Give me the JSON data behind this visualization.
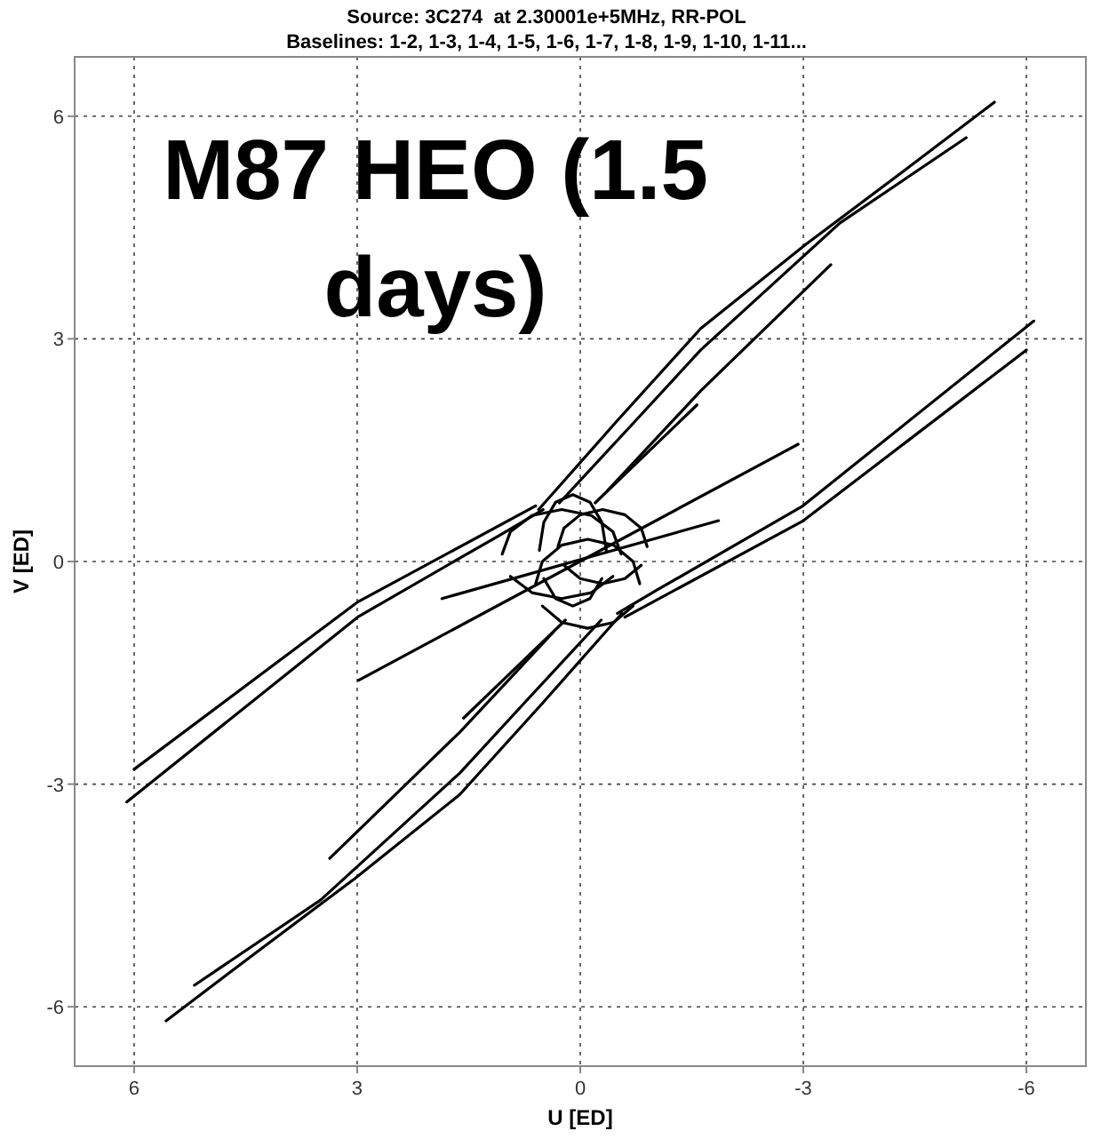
{
  "chart_data": {
    "type": "line",
    "title": "Source: 3C274  at 2.30001e+5MHz, RR-POL",
    "subtitle": "Baselines: 1-2, 1-3, 1-4, 1-5, 1-6, 1-7, 1-8, 1-9, 1-10, 1-11...",
    "xlabel": "U [ED]",
    "ylabel": "V [ED]",
    "annotations": [
      "M87 HEO (1.5 days)"
    ],
    "xlim": [
      6.8,
      -6.8
    ],
    "ylim": [
      -6.8,
      6.8
    ],
    "xticks": [
      6,
      3,
      0,
      -3,
      -6
    ],
    "yticks": [
      -6,
      -3,
      0,
      3,
      6
    ],
    "grid": true,
    "series": [
      {
        "color": "#000000",
        "x": [
          0.56,
          -0.5,
          -1.62,
          -3.03,
          -4.4,
          -5.57
        ],
        "values": [
          0.7,
          1.9,
          3.14,
          4.27,
          5.3,
          6.19
        ]
      },
      {
        "color": "#000000",
        "x": [
          -0.56,
          0.5,
          1.62,
          3.03,
          4.4,
          5.57
        ],
        "values": [
          -0.7,
          -1.9,
          -3.14,
          -4.27,
          -5.3,
          -6.19
        ]
      },
      {
        "color": "#000000",
        "x": [
          0.28,
          -0.7,
          -1.62,
          -3.49,
          -5.19
        ],
        "values": [
          0.79,
          1.85,
          2.85,
          4.56,
          5.71
        ]
      },
      {
        "color": "#000000",
        "x": [
          -0.28,
          0.7,
          1.62,
          3.49,
          5.19
        ],
        "values": [
          -0.79,
          -1.85,
          -2.85,
          -4.56,
          -5.71
        ]
      },
      {
        "color": "#000000",
        "x": [
          -0.37,
          -1.62,
          -3.37
        ],
        "values": [
          0.96,
          2.3,
          4.0
        ]
      },
      {
        "color": "#000000",
        "x": [
          0.37,
          1.62,
          3.37
        ],
        "values": [
          -0.96,
          -2.3,
          -4.0
        ]
      },
      {
        "color": "#000000",
        "x": [
          -0.2,
          -1.57
        ],
        "values": [
          0.79,
          2.11
        ]
      },
      {
        "color": "#000000",
        "x": [
          0.2,
          1.57
        ],
        "values": [
          -0.79,
          -2.11
        ]
      },
      {
        "color": "#000000",
        "x": [
          0.5,
          1.04,
          2.98,
          6.1
        ],
        "values": [
          0.7,
          0.38,
          -0.74,
          -3.24
        ]
      },
      {
        "color": "#000000",
        "x": [
          -0.5,
          -1.04,
          -2.98,
          -6.1
        ],
        "values": [
          -0.7,
          -0.38,
          0.74,
          3.24
        ]
      },
      {
        "color": "#000000",
        "x": [
          0.6,
          3.0,
          6.0
        ],
        "values": [
          0.75,
          -0.55,
          -2.8
        ]
      },
      {
        "color": "#000000",
        "x": [
          -0.6,
          -3.0,
          -6.0
        ],
        "values": [
          -0.75,
          0.55,
          2.85
        ]
      },
      {
        "color": "#000000",
        "x": [
          2.98,
          -2.93
        ],
        "values": [
          -1.6,
          1.58
        ]
      },
      {
        "color": "#000000",
        "x": [
          1.86,
          -1.86
        ],
        "values": [
          -0.5,
          0.55
        ]
      },
      {
        "color": "#000000",
        "x": [
          1.05,
          0.94,
          0.65,
          0.25,
          -0.15,
          -0.44,
          -0.55
        ],
        "values": [
          0.1,
          0.4,
          0.62,
          0.7,
          0.62,
          0.4,
          0.1
        ]
      },
      {
        "color": "#000000",
        "x": [
          -0.44,
          -0.15,
          0.25,
          0.65,
          0.94
        ],
        "values": [
          -0.2,
          -0.42,
          -0.5,
          -0.42,
          -0.2
        ]
      },
      {
        "color": "#000000",
        "x": [
          0.6,
          0.51,
          0.25,
          -0.1,
          -0.45,
          -0.71,
          -0.8
        ],
        "values": [
          -0.3,
          0,
          0.22,
          0.3,
          0.22,
          0,
          -0.3
        ]
      },
      {
        "color": "#000000",
        "x": [
          -0.71,
          -0.45,
          -0.1,
          0.25,
          0.51
        ],
        "values": [
          -0.6,
          -0.82,
          -0.9,
          -0.82,
          -0.6
        ]
      },
      {
        "color": "#000000",
        "x": [
          0.55,
          0.49,
          0.33,
          0.1,
          -0.13,
          -0.29,
          -0.35
        ],
        "values": [
          0.15,
          0.53,
          0.8,
          0.9,
          0.8,
          0.53,
          0.15
        ]
      },
      {
        "color": "#000000",
        "x": [
          -0.29,
          -0.13,
          0.1,
          0.33,
          0.49
        ],
        "values": [
          -0.23,
          -0.5,
          -0.6,
          -0.5,
          -0.23
        ]
      },
      {
        "color": "#000000",
        "x": [
          0.3,
          0.22,
          0,
          -0.3,
          -0.6,
          -0.82,
          -0.9
        ],
        "values": [
          0.2,
          0.45,
          0.63,
          0.7,
          0.63,
          0.45,
          0.2
        ]
      },
      {
        "color": "#000000",
        "x": [
          -0.82,
          -0.6,
          -0.3,
          0,
          0.22
        ],
        "values": [
          -0.05,
          -0.23,
          -0.3,
          -0.23,
          -0.05
        ]
      }
    ]
  }
}
